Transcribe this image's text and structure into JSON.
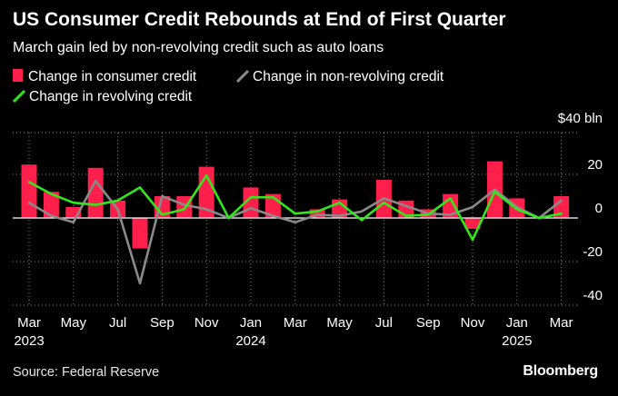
{
  "header": {
    "title": "US Consumer Credit Rebounds at End of First Quarter",
    "subtitle": "March gain led by non-revolving credit such as auto loans"
  },
  "legend": {
    "consumer": "Change in consumer credit",
    "nonrevolving": "Change in non-revolving credit",
    "revolving": "Change in revolving credit"
  },
  "footer": {
    "source": "Source: Federal Reserve",
    "brand": "Bloomberg"
  },
  "colors": {
    "consumer": "#ff1f4b",
    "nonrevolving": "#8a8a8a",
    "revolving": "#33e61e"
  },
  "chart_data": {
    "type": "bar",
    "unit_label": "$40 bln",
    "x": [
      "2023-03",
      "2023-04",
      "2023-05",
      "2023-06",
      "2023-07",
      "2023-08",
      "2023-09",
      "2023-10",
      "2023-11",
      "2023-12",
      "2024-01",
      "2024-02",
      "2024-03",
      "2024-04",
      "2024-05",
      "2024-06",
      "2024-07",
      "2024-08",
      "2024-09",
      "2024-10",
      "2024-11",
      "2024-12",
      "2025-01",
      "2025-02",
      "2025-03"
    ],
    "x_tick_labels": [
      {
        "label": "Mar",
        "year": "2023",
        "index": 0
      },
      {
        "label": "May",
        "year": "",
        "index": 2
      },
      {
        "label": "Jul",
        "year": "",
        "index": 4
      },
      {
        "label": "Sep",
        "year": "",
        "index": 6
      },
      {
        "label": "Nov",
        "year": "",
        "index": 8
      },
      {
        "label": "Jan",
        "year": "2024",
        "index": 10
      },
      {
        "label": "Mar",
        "year": "",
        "index": 12
      },
      {
        "label": "May",
        "year": "",
        "index": 14
      },
      {
        "label": "Jul",
        "year": "",
        "index": 16
      },
      {
        "label": "Sep",
        "year": "",
        "index": 18
      },
      {
        "label": "Nov",
        "year": "",
        "index": 20
      },
      {
        "label": "Jan",
        "year": "2025",
        "index": 22
      },
      {
        "label": "Mar",
        "year": "",
        "index": 24
      }
    ],
    "y_ticks": [
      20,
      0,
      -20,
      -40
    ],
    "y_tick_labels": [
      "20",
      "0",
      "-20",
      "-40"
    ],
    "ylim": [
      -40,
      40
    ],
    "series": [
      {
        "name": "Change in consumer credit",
        "type": "bar",
        "values": [
          24.5,
          12,
          5,
          23,
          8,
          -14,
          10,
          10,
          23.5,
          0,
          14,
          11,
          0,
          4,
          8.5,
          0,
          17.5,
          8,
          4,
          11,
          -5,
          26,
          9,
          0,
          10
        ]
      },
      {
        "name": "Change in non-revolving credit",
        "type": "line",
        "values": [
          7,
          1,
          -2,
          17,
          4,
          -30,
          10,
          6,
          4,
          0,
          4.5,
          1,
          -2,
          1.5,
          1,
          3,
          9,
          5.5,
          2,
          1.5,
          5,
          13,
          5,
          0,
          8
        ]
      },
      {
        "name": "Change in revolving credit",
        "type": "line",
        "values": [
          16.5,
          11,
          7,
          6,
          8,
          14,
          1.5,
          4,
          19.5,
          0,
          9.5,
          9.5,
          2,
          3,
          7,
          -1,
          7,
          1,
          1.5,
          9,
          -10,
          12,
          4,
          0,
          2
        ]
      }
    ]
  }
}
